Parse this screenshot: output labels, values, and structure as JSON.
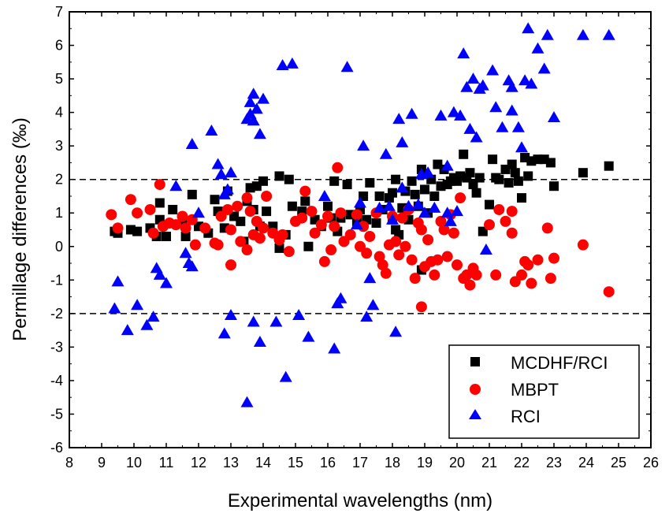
{
  "chart_data": {
    "type": "scatter",
    "title": "",
    "xlabel": "Experimental  wavelengths (nm)",
    "ylabel": "Permillage differences (‰)",
    "xlim": [
      8,
      26
    ],
    "ylim": [
      -6,
      7
    ],
    "xticks": [
      "8",
      "9",
      "10",
      "11",
      "12",
      "13",
      "14",
      "15",
      "16",
      "17",
      "18",
      "19",
      "20",
      "21",
      "22",
      "23",
      "24",
      "25",
      "26"
    ],
    "yticks": [
      "-6",
      "-5",
      "-4",
      "-3",
      "-2",
      "-1",
      "0",
      "1",
      "2",
      "3",
      "4",
      "5",
      "6",
      "7"
    ],
    "reference_lines": [
      2,
      -2
    ],
    "legend_position": "bottom-right",
    "colors": {
      "mcdhf": "#000000",
      "mbpt": "#ff0000",
      "rci": "#0000ff"
    },
    "series": [
      {
        "name": "MCDHF/RCI",
        "marker": "square",
        "points": [
          [
            9.4,
            0.45
          ],
          [
            9.5,
            0.4
          ],
          [
            9.9,
            0.5
          ],
          [
            10.1,
            0.45
          ],
          [
            10.5,
            0.55
          ],
          [
            10.7,
            0.3
          ],
          [
            10.8,
            0.8
          ],
          [
            10.8,
            1.3
          ],
          [
            11.0,
            0.3
          ],
          [
            11.2,
            1.1
          ],
          [
            11.5,
            0.8
          ],
          [
            11.6,
            0.3
          ],
          [
            11.8,
            1.55
          ],
          [
            12.0,
            0.6
          ],
          [
            12.3,
            0.4
          ],
          [
            12.5,
            1.4
          ],
          [
            12.6,
            1.05
          ],
          [
            12.8,
            0.55
          ],
          [
            12.9,
            1.65
          ],
          [
            13.1,
            0.9
          ],
          [
            13.3,
            0.75
          ],
          [
            13.4,
            0.15
          ],
          [
            13.5,
            1.35
          ],
          [
            13.6,
            1.75
          ],
          [
            13.7,
            1.1
          ],
          [
            13.8,
            1.8
          ],
          [
            13.9,
            0.6
          ],
          [
            14.0,
            1.95
          ],
          [
            14.1,
            1.05
          ],
          [
            14.3,
            0.6
          ],
          [
            14.5,
            -0.05
          ],
          [
            14.5,
            2.1
          ],
          [
            14.7,
            0.35
          ],
          [
            14.8,
            2.0
          ],
          [
            14.9,
            1.2
          ],
          [
            15.2,
            1.05
          ],
          [
            15.3,
            1.35
          ],
          [
            15.4,
            0.0
          ],
          [
            15.6,
            0.8
          ],
          [
            15.8,
            0.6
          ],
          [
            16.0,
            1.2
          ],
          [
            16.1,
            0.85
          ],
          [
            16.2,
            1.95
          ],
          [
            16.3,
            0.45
          ],
          [
            16.4,
            0.85
          ],
          [
            16.6,
            1.85
          ],
          [
            16.7,
            0.95
          ],
          [
            16.9,
            0.75
          ],
          [
            17.0,
            1.1
          ],
          [
            17.1,
            1.5
          ],
          [
            17.2,
            0.8
          ],
          [
            17.3,
            1.9
          ],
          [
            17.5,
            0.7
          ],
          [
            17.6,
            1.5
          ],
          [
            17.7,
            1.1
          ],
          [
            17.9,
            1.45
          ],
          [
            18.0,
            0.8
          ],
          [
            18.0,
            1.6
          ],
          [
            18.1,
            2.0
          ],
          [
            18.1,
            0.5
          ],
          [
            18.2,
            0.35
          ],
          [
            18.3,
            1.15
          ],
          [
            18.4,
            1.65
          ],
          [
            18.5,
            0.8
          ],
          [
            18.6,
            1.95
          ],
          [
            18.7,
            1.55
          ],
          [
            18.8,
            1.2
          ],
          [
            18.9,
            2.3
          ],
          [
            18.9,
            -0.7
          ],
          [
            19.0,
            1.7
          ],
          [
            19.1,
            1.0
          ],
          [
            19.2,
            2.0
          ],
          [
            19.3,
            1.5
          ],
          [
            19.4,
            2.45
          ],
          [
            19.5,
            1.8
          ],
          [
            19.6,
            2.3
          ],
          [
            19.7,
            1.85
          ],
          [
            19.8,
            1.95
          ],
          [
            19.9,
            2.05
          ],
          [
            20.0,
            1.95
          ],
          [
            20.1,
            2.1
          ],
          [
            20.2,
            2.75
          ],
          [
            20.3,
            2.05
          ],
          [
            20.4,
            2.2
          ],
          [
            20.5,
            1.85
          ],
          [
            20.6,
            1.6
          ],
          [
            20.7,
            2.05
          ],
          [
            20.8,
            0.45
          ],
          [
            21.0,
            1.25
          ],
          [
            21.1,
            2.6
          ],
          [
            21.2,
            2.05
          ],
          [
            21.3,
            2.0
          ],
          [
            21.5,
            2.3
          ],
          [
            21.6,
            1.9
          ],
          [
            21.7,
            2.45
          ],
          [
            21.8,
            2.2
          ],
          [
            21.9,
            1.95
          ],
          [
            22.0,
            1.45
          ],
          [
            22.1,
            2.65
          ],
          [
            22.2,
            2.1
          ],
          [
            22.3,
            2.55
          ],
          [
            22.5,
            2.6
          ],
          [
            22.7,
            2.6
          ],
          [
            22.9,
            2.5
          ],
          [
            23.0,
            1.8
          ],
          [
            23.9,
            2.2
          ],
          [
            24.7,
            2.4
          ]
        ]
      },
      {
        "name": "MBPT",
        "marker": "circle",
        "points": [
          [
            9.3,
            0.95
          ],
          [
            9.5,
            0.55
          ],
          [
            9.9,
            1.4
          ],
          [
            10.1,
            1.0
          ],
          [
            10.5,
            1.1
          ],
          [
            10.6,
            0.4
          ],
          [
            10.8,
            1.85
          ],
          [
            10.9,
            0.6
          ],
          [
            11.1,
            0.7
          ],
          [
            11.3,
            0.65
          ],
          [
            11.5,
            0.9
          ],
          [
            11.6,
            0.55
          ],
          [
            11.8,
            0.8
          ],
          [
            11.9,
            0.05
          ],
          [
            12.2,
            0.55
          ],
          [
            12.5,
            0.1
          ],
          [
            12.6,
            0.05
          ],
          [
            12.7,
            0.9
          ],
          [
            12.9,
            1.1
          ],
          [
            13.0,
            -0.55
          ],
          [
            13.0,
            0.5
          ],
          [
            13.2,
            1.2
          ],
          [
            13.3,
            0.15
          ],
          [
            13.5,
            1.45
          ],
          [
            13.5,
            -0.1
          ],
          [
            13.6,
            1.05
          ],
          [
            13.7,
            0.35
          ],
          [
            13.8,
            0.75
          ],
          [
            13.9,
            0.25
          ],
          [
            14.0,
            0.55
          ],
          [
            14.1,
            1.5
          ],
          [
            14.3,
            0.4
          ],
          [
            14.5,
            0.2
          ],
          [
            14.6,
            0.35
          ],
          [
            14.8,
            -0.15
          ],
          [
            15.0,
            0.75
          ],
          [
            15.2,
            0.85
          ],
          [
            15.3,
            1.65
          ],
          [
            15.5,
            1.05
          ],
          [
            15.6,
            0.4
          ],
          [
            15.8,
            0.65
          ],
          [
            15.9,
            -0.45
          ],
          [
            16.0,
            0.9
          ],
          [
            16.1,
            -0.1
          ],
          [
            16.2,
            0.6
          ],
          [
            16.3,
            2.35
          ],
          [
            16.4,
            1.0
          ],
          [
            16.5,
            0.15
          ],
          [
            16.7,
            0.35
          ],
          [
            16.9,
            0.95
          ],
          [
            17.0,
            0.0
          ],
          [
            17.1,
            0.6
          ],
          [
            17.2,
            -0.2
          ],
          [
            17.3,
            0.3
          ],
          [
            17.5,
            1.0
          ],
          [
            17.6,
            -0.3
          ],
          [
            17.7,
            -0.55
          ],
          [
            17.8,
            -0.8
          ],
          [
            17.9,
            0.05
          ],
          [
            18.0,
            0.9
          ],
          [
            18.1,
            0.15
          ],
          [
            18.2,
            -0.25
          ],
          [
            18.3,
            0.85
          ],
          [
            18.4,
            0.0
          ],
          [
            18.5,
            1.1
          ],
          [
            18.6,
            -0.4
          ],
          [
            18.7,
            -0.95
          ],
          [
            18.8,
            0.7
          ],
          [
            18.9,
            -1.8
          ],
          [
            18.9,
            0.5
          ],
          [
            19.0,
            -0.6
          ],
          [
            19.1,
            0.2
          ],
          [
            19.2,
            -0.45
          ],
          [
            19.3,
            -0.85
          ],
          [
            19.4,
            -0.4
          ],
          [
            19.5,
            0.75
          ],
          [
            19.6,
            0.5
          ],
          [
            19.7,
            -0.3
          ],
          [
            19.8,
            0.95
          ],
          [
            19.9,
            0.4
          ],
          [
            20.0,
            -0.55
          ],
          [
            20.1,
            1.45
          ],
          [
            20.2,
            -0.95
          ],
          [
            20.3,
            -0.85
          ],
          [
            20.4,
            -1.15
          ],
          [
            20.5,
            -0.65
          ],
          [
            20.6,
            -0.85
          ],
          [
            21.0,
            0.65
          ],
          [
            21.2,
            -0.85
          ],
          [
            21.3,
            1.1
          ],
          [
            21.5,
            0.75
          ],
          [
            21.7,
            0.4
          ],
          [
            21.7,
            1.05
          ],
          [
            21.8,
            -1.05
          ],
          [
            22.0,
            -0.85
          ],
          [
            22.1,
            -0.45
          ],
          [
            22.2,
            -0.55
          ],
          [
            22.3,
            -1.1
          ],
          [
            22.5,
            -0.4
          ],
          [
            22.8,
            0.55
          ],
          [
            22.9,
            -0.95
          ],
          [
            23.0,
            -0.35
          ],
          [
            23.9,
            0.05
          ],
          [
            24.7,
            -1.35
          ]
        ]
      },
      {
        "name": "RCI",
        "marker": "triangle",
        "points": [
          [
            9.4,
            -1.85
          ],
          [
            9.5,
            -1.05
          ],
          [
            9.8,
            -2.5
          ],
          [
            10.1,
            -1.75
          ],
          [
            10.4,
            -2.35
          ],
          [
            10.6,
            -2.1
          ],
          [
            10.7,
            -0.65
          ],
          [
            10.8,
            -0.85
          ],
          [
            11.0,
            -1.1
          ],
          [
            11.3,
            1.8
          ],
          [
            11.6,
            -0.2
          ],
          [
            11.7,
            -0.5
          ],
          [
            11.8,
            -0.6
          ],
          [
            11.8,
            3.05
          ],
          [
            12.0,
            1.0
          ],
          [
            12.4,
            3.45
          ],
          [
            12.6,
            2.45
          ],
          [
            12.7,
            2.15
          ],
          [
            12.8,
            -2.6
          ],
          [
            12.8,
            1.55
          ],
          [
            12.9,
            1.7
          ],
          [
            13.0,
            -2.05
          ],
          [
            13.0,
            2.2
          ],
          [
            13.5,
            -4.65
          ],
          [
            13.5,
            3.8
          ],
          [
            13.6,
            4.3
          ],
          [
            13.6,
            3.95
          ],
          [
            13.7,
            4.55
          ],
          [
            13.7,
            -2.25
          ],
          [
            13.7,
            3.75
          ],
          [
            13.8,
            4.1
          ],
          [
            13.9,
            3.35
          ],
          [
            13.9,
            -2.85
          ],
          [
            14.0,
            4.4
          ],
          [
            14.4,
            -2.25
          ],
          [
            14.6,
            5.4
          ],
          [
            14.7,
            -3.9
          ],
          [
            14.9,
            5.45
          ],
          [
            15.1,
            -2.05
          ],
          [
            15.4,
            -2.7
          ],
          [
            15.9,
            1.5
          ],
          [
            16.2,
            -3.05
          ],
          [
            16.3,
            -1.7
          ],
          [
            16.4,
            -1.55
          ],
          [
            16.6,
            5.35
          ],
          [
            16.9,
            0.65
          ],
          [
            17.0,
            1.3
          ],
          [
            17.1,
            3.0
          ],
          [
            17.2,
            -2.1
          ],
          [
            17.3,
            -0.95
          ],
          [
            17.4,
            -1.75
          ],
          [
            17.6,
            1.15
          ],
          [
            17.8,
            2.75
          ],
          [
            17.9,
            1.2
          ],
          [
            18.0,
            0.8
          ],
          [
            18.1,
            -2.55
          ],
          [
            18.2,
            3.8
          ],
          [
            18.3,
            3.1
          ],
          [
            18.3,
            1.75
          ],
          [
            18.5,
            1.2
          ],
          [
            18.6,
            3.95
          ],
          [
            18.8,
            1.25
          ],
          [
            18.9,
            2.15
          ],
          [
            19.0,
            1.0
          ],
          [
            19.1,
            2.2
          ],
          [
            19.3,
            1.15
          ],
          [
            19.5,
            3.9
          ],
          [
            19.7,
            2.4
          ],
          [
            19.7,
            1.0
          ],
          [
            19.8,
            0.75
          ],
          [
            19.9,
            4.0
          ],
          [
            20.0,
            1.05
          ],
          [
            20.1,
            3.9
          ],
          [
            20.2,
            5.75
          ],
          [
            20.3,
            4.75
          ],
          [
            20.4,
            3.5
          ],
          [
            20.5,
            5.0
          ],
          [
            20.6,
            3.25
          ],
          [
            20.7,
            4.7
          ],
          [
            20.8,
            4.8
          ],
          [
            20.9,
            -0.1
          ],
          [
            21.1,
            5.25
          ],
          [
            21.2,
            4.15
          ],
          [
            21.4,
            3.55
          ],
          [
            21.6,
            4.95
          ],
          [
            21.7,
            4.75
          ],
          [
            21.7,
            4.05
          ],
          [
            21.9,
            3.55
          ],
          [
            22.0,
            2.95
          ],
          [
            22.1,
            4.95
          ],
          [
            22.2,
            6.5
          ],
          [
            22.3,
            4.85
          ],
          [
            22.5,
            5.9
          ],
          [
            22.7,
            5.3
          ],
          [
            22.8,
            6.3
          ],
          [
            23.0,
            3.85
          ],
          [
            23.9,
            6.3
          ],
          [
            24.7,
            6.3
          ]
        ]
      }
    ]
  }
}
